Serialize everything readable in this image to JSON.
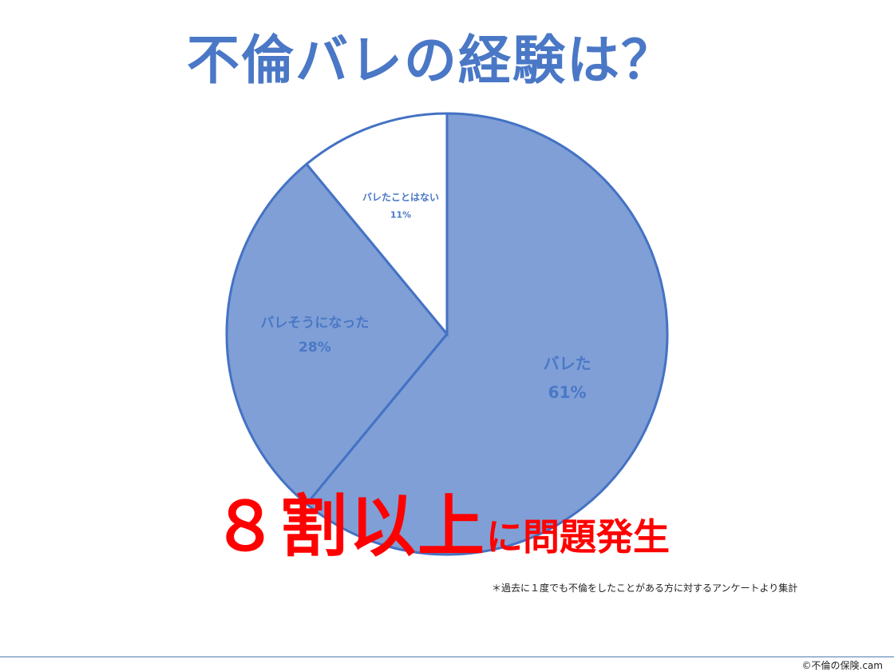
{
  "chart_data": {
    "type": "pie",
    "title": "不倫バレの経験は？",
    "start": "12 o'clock, clockwise",
    "slices": [
      {
        "label": "バレた",
        "value": 61,
        "value_label": "61%",
        "color": "#7f9fd6"
      },
      {
        "label": "バレそうになった",
        "value": 28,
        "value_label": "28%",
        "color": "#7f9fd6"
      },
      {
        "label": "バレたことはない",
        "value": 11,
        "value_label": "11%",
        "color": "#ffffff"
      }
    ],
    "stroke_color": "#4472c4",
    "label_color": "#4a78c6"
  },
  "headline": {
    "big": "８割以上",
    "small": "に問題発生",
    "color": "#ff0000"
  },
  "note": "＊過去に１度でも不倫をしたことがある方に対するアンケートより集計",
  "copyright": "©不倫の保険.cam"
}
